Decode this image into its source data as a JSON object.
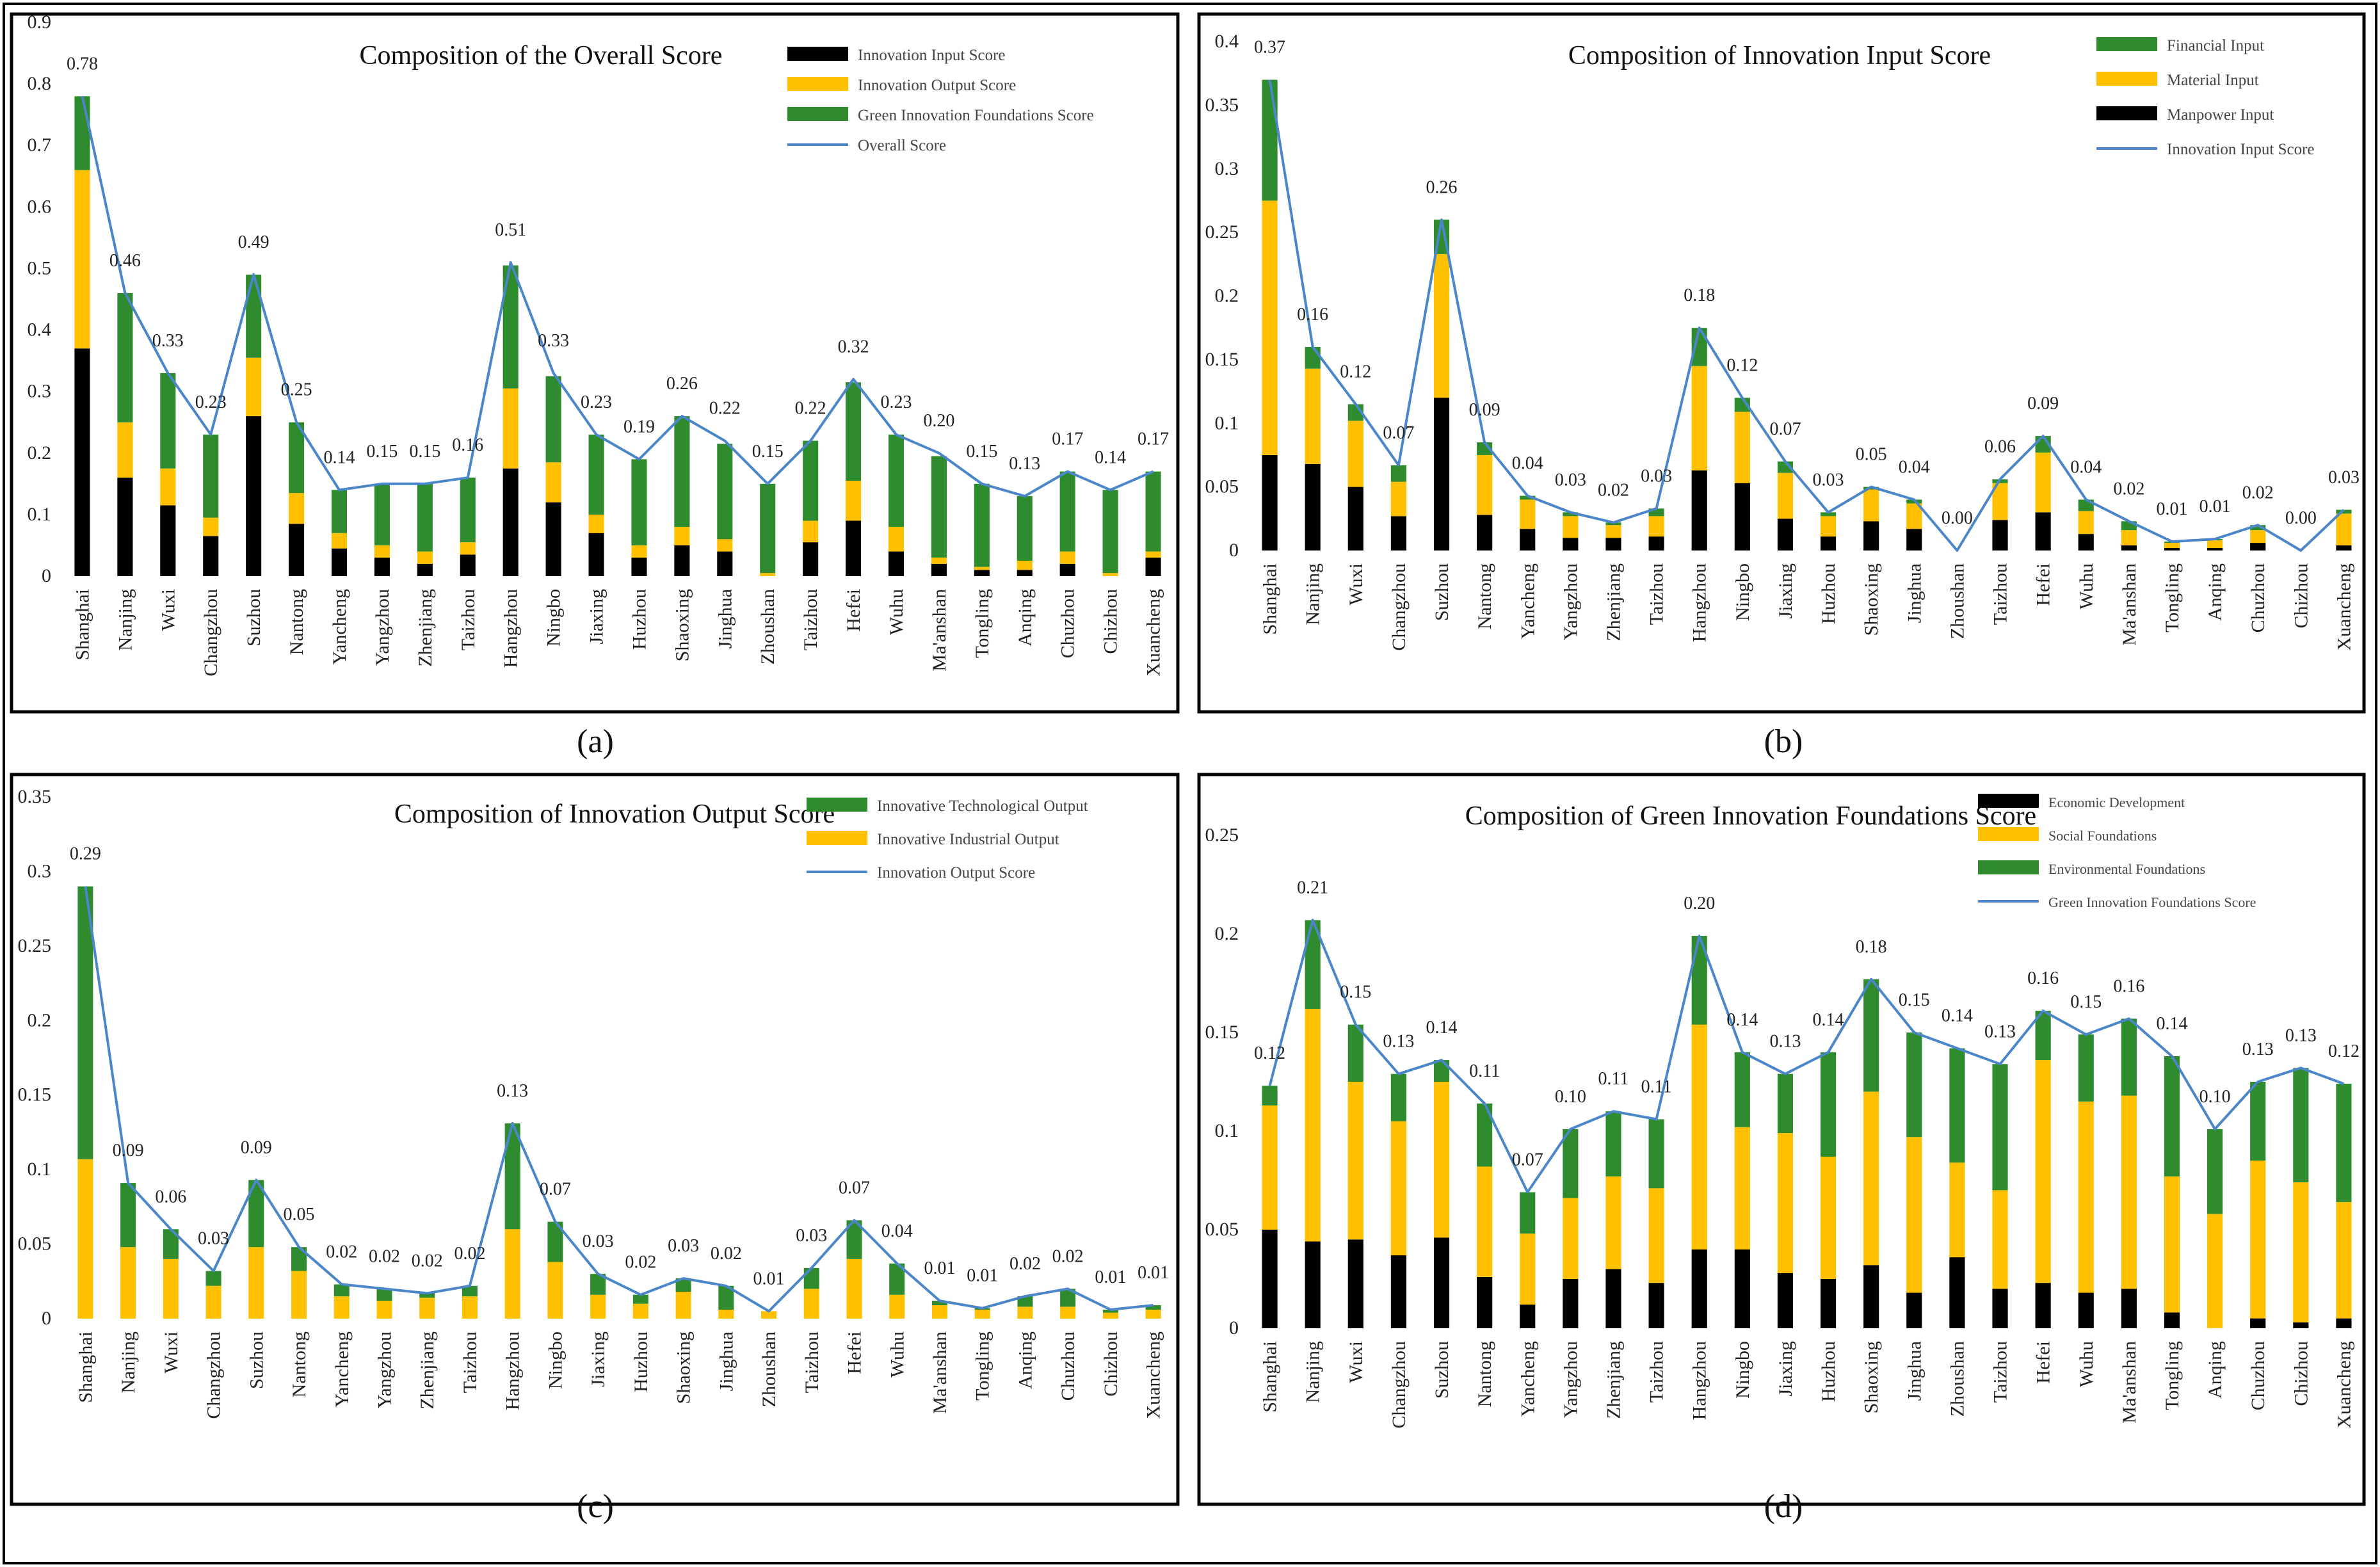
{
  "colors": {
    "black": "#000000",
    "yellow": "#FFC000",
    "green": "#2E8B2E",
    "blue": "#4A86C8",
    "frame": "#000000"
  },
  "city_labels": [
    "Shanghai",
    "Nanjing",
    "Wuxi",
    "Changzhou",
    "Suzhou",
    "Nantong",
    "Yancheng",
    "Yangzhou",
    "Zhenjiang",
    "Taizhou",
    "Hangzhou",
    "Ningbo",
    "Jiaxing",
    "Huzhou",
    "Shaoxing",
    "Jinghua",
    "Zhoushan",
    "Taizhou",
    "Hefei",
    "Wuhu",
    "Ma'anshan",
    "Tongling",
    "Anqing",
    "Chuzhou",
    "Chizhou",
    "Xuancheng"
  ],
  "chart_data": [
    {
      "panel": "(a)",
      "type": "bar",
      "stacked": true,
      "title": "Composition of the Overall Score",
      "ylim": [
        0,
        0.9
      ],
      "yticks": [
        "0",
        "0.1",
        "0.2",
        "0.3",
        "0.4",
        "0.5",
        "0.6",
        "0.7",
        "0.8",
        "0.9"
      ],
      "legend_position": "top-right",
      "series": [
        {
          "name": "Innovation Input Score",
          "color_key": "black",
          "values": [
            0.37,
            0.16,
            0.115,
            0.065,
            0.26,
            0.085,
            0.045,
            0.03,
            0.02,
            0.035,
            0.175,
            0.12,
            0.07,
            0.03,
            0.05,
            0.04,
            0.0,
            0.055,
            0.09,
            0.04,
            0.02,
            0.01,
            0.01,
            0.02,
            0.0,
            0.03
          ]
        },
        {
          "name": "Innovation Output Score",
          "color_key": "yellow",
          "values": [
            0.29,
            0.09,
            0.06,
            0.03,
            0.095,
            0.05,
            0.025,
            0.02,
            0.02,
            0.02,
            0.13,
            0.065,
            0.03,
            0.02,
            0.03,
            0.02,
            0.005,
            0.035,
            0.065,
            0.04,
            0.01,
            0.005,
            0.015,
            0.02,
            0.005,
            0.01
          ]
        },
        {
          "name": "Green Innovation Foundations Score",
          "color_key": "green",
          "values": [
            0.12,
            0.21,
            0.155,
            0.135,
            0.135,
            0.115,
            0.07,
            0.1,
            0.11,
            0.105,
            0.2,
            0.14,
            0.13,
            0.14,
            0.18,
            0.155,
            0.145,
            0.13,
            0.16,
            0.15,
            0.165,
            0.135,
            0.105,
            0.13,
            0.135,
            0.13
          ]
        }
      ],
      "line": {
        "name": "Overall Score",
        "color_key": "blue",
        "values": [
          0.78,
          0.46,
          0.33,
          0.23,
          0.49,
          0.25,
          0.14,
          0.15,
          0.15,
          0.16,
          0.51,
          0.33,
          0.23,
          0.19,
          0.26,
          0.22,
          0.15,
          0.22,
          0.32,
          0.23,
          0.2,
          0.15,
          0.13,
          0.17,
          0.14,
          0.17
        ]
      },
      "labels": [
        "0.78",
        "0.46",
        "0.33",
        "0.23",
        "0.49",
        "0.25",
        "0.14",
        "0.15",
        "0.15",
        "0.16",
        "0.51",
        "0.33",
        "0.23",
        "0.19",
        "0.26",
        "0.22",
        "0.15",
        "0.22",
        "0.32",
        "0.23",
        "0.20",
        "0.15",
        "0.13",
        "0.17",
        "0.14",
        "0.17"
      ]
    },
    {
      "panel": "(b)",
      "type": "bar",
      "stacked": true,
      "title": "Composition of Innovation Input Score",
      "ylim": [
        0,
        0.4
      ],
      "yticks": [
        "0",
        "0.05",
        "0.1",
        "0.15",
        "0.2",
        "0.25",
        "0.3",
        "0.35",
        "0.4"
      ],
      "legend_position": "top-right",
      "series": [
        {
          "name": "Manpower Input",
          "color_key": "black",
          "values": [
            0.075,
            0.068,
            0.05,
            0.027,
            0.12,
            0.028,
            0.017,
            0.01,
            0.01,
            0.011,
            0.063,
            0.053,
            0.025,
            0.011,
            0.023,
            0.017,
            0.0,
            0.024,
            0.03,
            0.013,
            0.004,
            0.002,
            0.002,
            0.006,
            0.0,
            0.004
          ]
        },
        {
          "name": "Material Input",
          "color_key": "yellow",
          "values": [
            0.2,
            0.075,
            0.052,
            0.027,
            0.113,
            0.047,
            0.023,
            0.017,
            0.01,
            0.016,
            0.082,
            0.056,
            0.036,
            0.016,
            0.025,
            0.02,
            0.0,
            0.029,
            0.047,
            0.018,
            0.012,
            0.004,
            0.006,
            0.01,
            0.0,
            0.025
          ]
        },
        {
          "name": "Financial Input",
          "color_key": "green",
          "values": [
            0.095,
            0.017,
            0.013,
            0.013,
            0.027,
            0.01,
            0.003,
            0.003,
            0.002,
            0.006,
            0.03,
            0.011,
            0.009,
            0.003,
            0.002,
            0.003,
            0.0,
            0.003,
            0.013,
            0.009,
            0.007,
            0.001,
            0.001,
            0.004,
            0.0,
            0.003
          ]
        }
      ],
      "line": {
        "name": "Innovation Input Score",
        "color_key": "blue",
        "values": [
          0.37,
          0.16,
          0.115,
          0.067,
          0.26,
          0.085,
          0.043,
          0.03,
          0.022,
          0.033,
          0.175,
          0.12,
          0.07,
          0.03,
          0.05,
          0.04,
          0.0,
          0.056,
          0.09,
          0.04,
          0.023,
          0.007,
          0.009,
          0.02,
          0.0,
          0.032
        ]
      },
      "labels": [
        "0.37",
        "0.16",
        "0.12",
        "0.07",
        "0.26",
        "0.09",
        "0.04",
        "0.03",
        "0.02",
        "0.03",
        "0.18",
        "0.12",
        "0.07",
        "0.03",
        "0.05",
        "0.04",
        "0.00",
        "0.06",
        "0.09",
        "0.04",
        "0.02",
        "0.01",
        "0.01",
        "0.02",
        "0.00",
        "0.03"
      ]
    },
    {
      "panel": "(c)",
      "type": "bar",
      "stacked": true,
      "title": "Composition of Innovation Output Score",
      "ylim": [
        0,
        0.35
      ],
      "yticks": [
        "0",
        "0.05",
        "0.1",
        "0.15",
        "0.2",
        "0.25",
        "0.3",
        "0.35"
      ],
      "legend_position": "top-right",
      "series": [
        {
          "name": "Innovative Industrial Output",
          "color_key": "yellow",
          "values": [
            0.107,
            0.048,
            0.04,
            0.022,
            0.048,
            0.032,
            0.015,
            0.012,
            0.014,
            0.015,
            0.06,
            0.038,
            0.016,
            0.01,
            0.018,
            0.006,
            0.005,
            0.02,
            0.04,
            0.016,
            0.009,
            0.006,
            0.008,
            0.008,
            0.004,
            0.006
          ]
        },
        {
          "name": "Innovative Technological Output",
          "color_key": "green",
          "values": [
            0.183,
            0.043,
            0.02,
            0.01,
            0.045,
            0.016,
            0.008,
            0.008,
            0.003,
            0.007,
            0.071,
            0.027,
            0.014,
            0.006,
            0.009,
            0.016,
            0.0,
            0.014,
            0.026,
            0.021,
            0.003,
            0.001,
            0.007,
            0.012,
            0.002,
            0.003
          ]
        }
      ],
      "line": {
        "name": "Innovation Output Score",
        "color_key": "blue",
        "values": [
          0.29,
          0.091,
          0.06,
          0.032,
          0.093,
          0.048,
          0.023,
          0.02,
          0.017,
          0.022,
          0.131,
          0.065,
          0.03,
          0.016,
          0.027,
          0.022,
          0.005,
          0.034,
          0.066,
          0.037,
          0.012,
          0.007,
          0.015,
          0.02,
          0.006,
          0.009
        ]
      },
      "labels": [
        "0.29",
        "0.09",
        "0.06",
        "0.03",
        "0.09",
        "0.05",
        "0.02",
        "0.02",
        "0.02",
        "0.02",
        "0.13",
        "0.07",
        "0.03",
        "0.02",
        "0.03",
        "0.02",
        "0.01",
        "0.03",
        "0.07",
        "0.04",
        "0.01",
        "0.01",
        "0.02",
        "0.02",
        "0.01",
        "0.01"
      ]
    },
    {
      "panel": "(d)",
      "type": "bar",
      "stacked": true,
      "title": "Composition of Green Innovation Foundations Score",
      "ylim": [
        0,
        0.25
      ],
      "yticks": [
        "0",
        "0.05",
        "0.1",
        "0.15",
        "0.2",
        "0.25"
      ],
      "legend_position": "top-right",
      "series": [
        {
          "name": "Economic Development",
          "color_key": "black",
          "values": [
            0.05,
            0.044,
            0.045,
            0.037,
            0.046,
            0.026,
            0.012,
            0.025,
            0.03,
            0.023,
            0.04,
            0.04,
            0.028,
            0.025,
            0.032,
            0.018,
            0.036,
            0.02,
            0.023,
            0.018,
            0.02,
            0.008,
            0.0,
            0.005,
            0.003,
            0.005
          ]
        },
        {
          "name": "Social Foundations",
          "color_key": "yellow",
          "values": [
            0.063,
            0.118,
            0.08,
            0.068,
            0.079,
            0.056,
            0.036,
            0.041,
            0.047,
            0.048,
            0.114,
            0.062,
            0.071,
            0.062,
            0.088,
            0.079,
            0.048,
            0.05,
            0.113,
            0.097,
            0.098,
            0.069,
            0.058,
            0.08,
            0.071,
            0.059
          ]
        },
        {
          "name": "Environmental Foundations",
          "color_key": "green",
          "values": [
            0.01,
            0.045,
            0.029,
            0.024,
            0.011,
            0.032,
            0.021,
            0.035,
            0.033,
            0.035,
            0.045,
            0.038,
            0.03,
            0.053,
            0.057,
            0.053,
            0.058,
            0.064,
            0.025,
            0.034,
            0.039,
            0.061,
            0.043,
            0.04,
            0.058,
            0.06
          ]
        }
      ],
      "line": {
        "name": "Green Innovation Foundations Score",
        "color_key": "blue",
        "values": [
          0.123,
          0.207,
          0.154,
          0.129,
          0.136,
          0.114,
          0.069,
          0.101,
          0.11,
          0.106,
          0.199,
          0.14,
          0.129,
          0.14,
          0.177,
          0.15,
          0.142,
          0.134,
          0.161,
          0.149,
          0.157,
          0.138,
          0.101,
          0.125,
          0.132,
          0.124
        ]
      },
      "labels": [
        "0.12",
        "0.21",
        "0.15",
        "0.13",
        "0.14",
        "0.11",
        "0.07",
        "0.10",
        "0.11",
        "0.11",
        "0.20",
        "0.14",
        "0.13",
        "0.14",
        "0.18",
        "0.15",
        "0.14",
        "0.13",
        "0.16",
        "0.15",
        "0.16",
        "0.14",
        "0.10",
        "0.13",
        "0.13",
        "0.12"
      ]
    }
  ]
}
